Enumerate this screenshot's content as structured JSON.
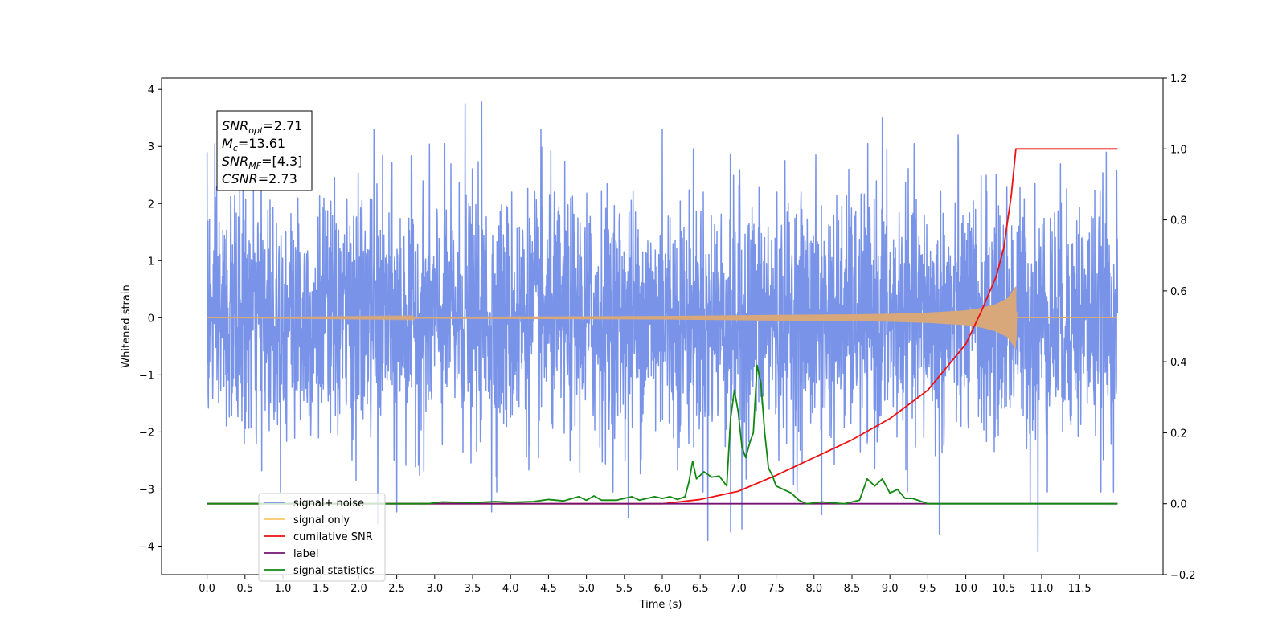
{
  "chart_data": {
    "type": "line",
    "xlabel": "Time (s)",
    "ylabel": "Whitened strain",
    "xlim": [
      -0.6,
      12.6
    ],
    "ylim": [
      -4.5,
      4.2
    ],
    "y2lim": [
      -0.2,
      1.2
    ],
    "x_ticks": [
      0.0,
      0.5,
      1.0,
      1.5,
      2.0,
      2.5,
      3.0,
      3.5,
      4.0,
      4.5,
      5.0,
      5.5,
      6.0,
      6.5,
      7.0,
      7.5,
      8.0,
      8.5,
      9.0,
      9.5,
      10.0,
      10.5,
      11.0,
      11.5
    ],
    "x_tick_labels": [
      "0.0",
      "0.5",
      "1.0",
      "1.5",
      "2.0",
      "2.5",
      "3.0",
      "3.5",
      "4.0",
      "4.5",
      "5.0",
      "5.5",
      "6.0",
      "6.5",
      "7.0",
      "7.5",
      "8.0",
      "8.5",
      "9.0",
      "9.5",
      "10.0",
      "10.5",
      "11.0",
      "11.5"
    ],
    "y_ticks": [
      -4,
      -3,
      -2,
      -1,
      0,
      1,
      2,
      3,
      4
    ],
    "y_tick_labels": [
      "−4",
      "−3",
      "−2",
      "−1",
      "0",
      "1",
      "2",
      "3",
      "4"
    ],
    "y2_ticks": [
      -0.2,
      0.0,
      0.2,
      0.4,
      0.6,
      0.8,
      1.0,
      1.2
    ],
    "y2_tick_labels": [
      "−0.2",
      "0.0",
      "0.2",
      "0.4",
      "0.6",
      "0.8",
      "1.0",
      "1.2"
    ],
    "legend_position": "lower-left",
    "series": [
      {
        "name": "signal+ noise",
        "color": "#7893e8",
        "axis": "left",
        "x_range": [
          0.0,
          12.0
        ],
        "typical_range": [
          -2.3,
          2.3
        ],
        "peaks": [
          {
            "x": 3.4,
            "y": 3.75
          },
          {
            "x": 3.75,
            "y": 3.8
          },
          {
            "x": 3.62,
            "y": 3.78
          },
          {
            "x": 4.4,
            "y": 3.3
          },
          {
            "x": 8.1,
            "y": 3.5
          },
          {
            "x": 8.9,
            "y": 3.5
          },
          {
            "x": 6.0,
            "y": 3.3
          },
          {
            "x": 2.2,
            "y": 3.3
          },
          {
            "x": 9.9,
            "y": 3.2
          },
          {
            "x": 6.6,
            "y": -3.9
          },
          {
            "x": 6.9,
            "y": -3.75
          },
          {
            "x": 7.05,
            "y": -3.7
          },
          {
            "x": 9.65,
            "y": -3.8
          },
          {
            "x": 10.95,
            "y": -4.1
          },
          {
            "x": 2.25,
            "y": -3.6
          },
          {
            "x": 5.55,
            "y": -3.5
          },
          {
            "x": 8.1,
            "y": -3.45
          },
          {
            "x": 3.75,
            "y": -3.4
          },
          {
            "x": 2.5,
            "y": -3.4
          },
          {
            "x": 10.85,
            "y": -3.25
          },
          {
            "x": 11.85,
            "y": 2.9
          },
          {
            "x": 0.0,
            "y": 2.9
          }
        ]
      },
      {
        "name": "signal only",
        "color": "#d8a87a",
        "axis": "left",
        "x": [
          0.0,
          6.0,
          7.5,
          8.5,
          9.0,
          9.5,
          10.0,
          10.2,
          10.4,
          10.55,
          10.66,
          10.67,
          12.0
        ],
        "envelope": [
          0.0,
          0.03,
          0.05,
          0.06,
          0.07,
          0.09,
          0.13,
          0.17,
          0.24,
          0.34,
          0.55,
          0.0,
          0.0
        ]
      },
      {
        "name": "cumilative SNR",
        "color": "#ee1111",
        "axis": "right",
        "x": [
          0.0,
          6.0,
          6.5,
          7.0,
          7.5,
          8.0,
          8.5,
          9.0,
          9.5,
          10.0,
          10.2,
          10.4,
          10.5,
          10.6,
          10.66,
          10.67,
          12.0
        ],
        "values": [
          0.0,
          0.0,
          0.012,
          0.035,
          0.08,
          0.13,
          0.18,
          0.24,
          0.32,
          0.45,
          0.54,
          0.64,
          0.72,
          0.87,
          1.0,
          1.0,
          1.0
        ]
      },
      {
        "name": "label",
        "color": "#731373",
        "axis": "right",
        "x": [
          0.0,
          12.0
        ],
        "values": [
          0.0,
          0.0
        ]
      },
      {
        "name": "signal statistics",
        "color": "#118811",
        "axis": "right",
        "x": [
          0.0,
          2.9,
          3.1,
          3.5,
          3.8,
          4.0,
          4.3,
          4.5,
          4.7,
          4.9,
          5.0,
          5.1,
          5.2,
          5.4,
          5.6,
          5.7,
          5.9,
          6.0,
          6.1,
          6.2,
          6.3,
          6.35,
          6.4,
          6.45,
          6.55,
          6.65,
          6.75,
          6.85,
          6.9,
          6.95,
          7.0,
          7.05,
          7.1,
          7.15,
          7.2,
          7.25,
          7.3,
          7.35,
          7.4,
          7.45,
          7.5,
          7.6,
          7.7,
          7.8,
          7.9,
          8.1,
          8.4,
          8.6,
          8.7,
          8.8,
          8.9,
          9.0,
          9.1,
          9.2,
          9.3,
          9.5,
          12.0
        ],
        "values": [
          0.0,
          0.0,
          0.005,
          0.003,
          0.006,
          0.004,
          0.006,
          0.012,
          0.008,
          0.02,
          0.01,
          0.022,
          0.01,
          0.01,
          0.02,
          0.01,
          0.02,
          0.015,
          0.02,
          0.012,
          0.02,
          0.06,
          0.12,
          0.07,
          0.09,
          0.075,
          0.078,
          0.05,
          0.24,
          0.32,
          0.26,
          0.16,
          0.13,
          0.17,
          0.2,
          0.39,
          0.34,
          0.2,
          0.1,
          0.08,
          0.05,
          0.04,
          0.03,
          0.01,
          0.0,
          0.005,
          0.0,
          0.01,
          0.07,
          0.05,
          0.07,
          0.03,
          0.04,
          0.015,
          0.015,
          0.0,
          0.0
        ]
      }
    ],
    "legend": [
      {
        "label": "signal+ noise",
        "color": "#7893e8"
      },
      {
        "label": "signal only",
        "color": "#fec96a"
      },
      {
        "label": "cumilative SNR",
        "color": "#ee1111"
      },
      {
        "label": "label",
        "color": "#731373"
      },
      {
        "label": "signal statistics",
        "color": "#118811"
      }
    ],
    "annotation": [
      {
        "var": "SNR",
        "sub": "opt",
        "value": "=2.71"
      },
      {
        "var": "M",
        "sub": "c",
        "value": "=13.61"
      },
      {
        "var": "SNR",
        "sub": "MF",
        "value": "=[4.3]"
      },
      {
        "var": "CSNR",
        "sub": "",
        "value": "=2.73"
      }
    ]
  }
}
